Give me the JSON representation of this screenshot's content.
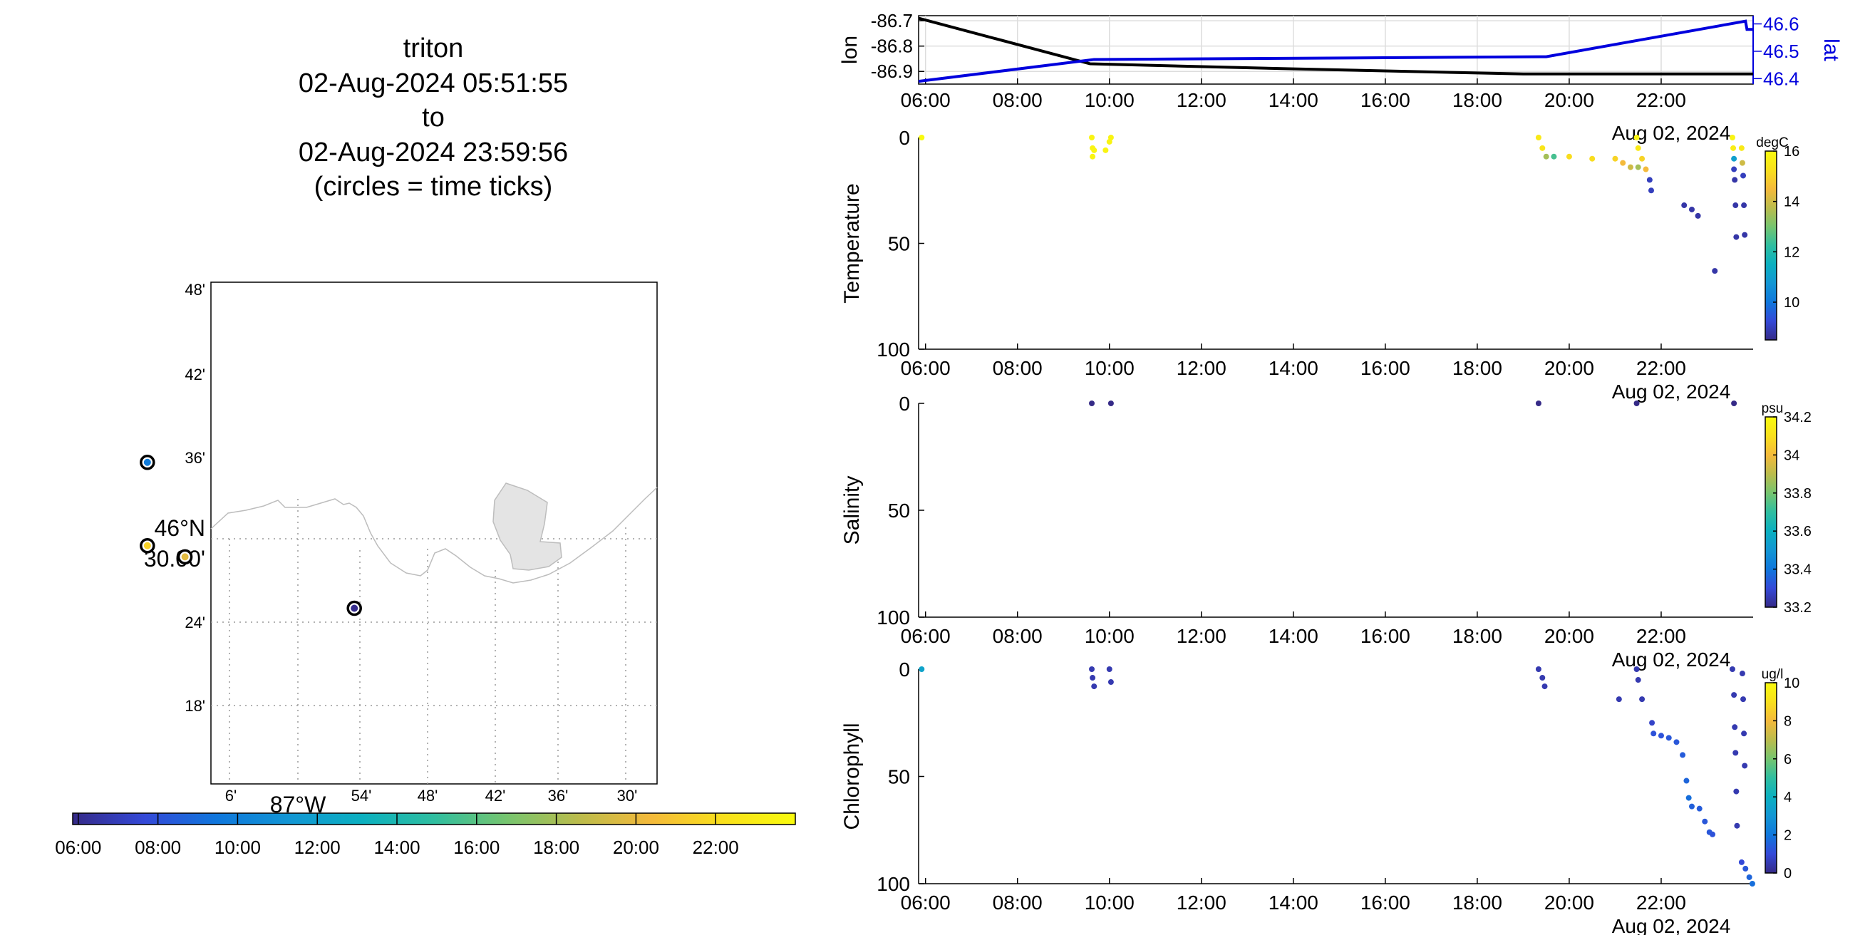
{
  "colors": {
    "lon_line": "#000000",
    "lat_line": "#0000dd",
    "parula": [
      "#352a87",
      "#3449d8",
      "#0f77dc",
      "#1296d4",
      "#0bb0c0",
      "#2fbea0",
      "#76c56f",
      "#bbbc4c",
      "#f4ba3b",
      "#f9e01c",
      "#f9fb0e"
    ]
  },
  "title": {
    "lines": [
      "triton",
      "02-Aug-2024 05:51:55",
      "to",
      "02-Aug-2024 23:59:56",
      "(circles = time ticks)"
    ]
  },
  "map": {
    "lat_ticks": [
      "48'",
      "42'",
      "36'",
      "30.00'",
      "24'",
      "18'"
    ],
    "lat_major": "46°N",
    "lon_ticks": [
      "6'",
      "54'",
      "48'",
      "42'",
      "36'",
      "30'"
    ],
    "lon_major": "87°W",
    "markers": [
      {
        "lon": -87.12,
        "lat": 46.555,
        "hour": 9.8
      },
      {
        "lon": -87.12,
        "lat": 46.495,
        "hour": 21.5
      },
      {
        "lon": -87.09,
        "lat": 46.487,
        "hour": 19.8
      },
      {
        "lon": -86.955,
        "lat": 46.45,
        "hour": 6.0
      }
    ]
  },
  "time_colorbar": {
    "ticks": [
      "06:00",
      "08:00",
      "10:00",
      "12:00",
      "14:00",
      "16:00",
      "18:00",
      "20:00",
      "22:00"
    ],
    "range_hours": [
      5.86,
      24.0
    ]
  },
  "chart_data": [
    {
      "type": "line",
      "title": "",
      "xlabel": "",
      "x_ticks": [
        "06:00",
        "08:00",
        "10:00",
        "12:00",
        "14:00",
        "16:00",
        "18:00",
        "20:00",
        "22:00"
      ],
      "x_date_label": "Aug 02, 2024",
      "xlim": [
        "05:51",
        "24:00"
      ],
      "left_axis": {
        "label": "lon",
        "ticks": [
          "-86.7",
          "-86.8",
          "-86.9"
        ],
        "ylim": [
          -86.95,
          -86.68
        ]
      },
      "right_axis": {
        "label": "lat",
        "ticks": [
          "46.6",
          "46.5",
          "46.4"
        ],
        "ylim": [
          46.38,
          46.63
        ]
      },
      "series": [
        {
          "name": "lon",
          "axis": "left",
          "x": [
            "05:51",
            "09:35",
            "14:00",
            "19:00",
            "22:00",
            "24:00"
          ],
          "y": [
            -86.69,
            -86.87,
            -86.89,
            -86.91,
            -86.91,
            -86.91
          ]
        },
        {
          "name": "lat",
          "axis": "right",
          "x": [
            "05:51",
            "09:40",
            "19:30",
            "21:30",
            "23:50",
            "23:52",
            "24:00"
          ],
          "y": [
            46.39,
            46.47,
            46.48,
            46.54,
            46.61,
            46.58,
            46.58
          ]
        }
      ]
    },
    {
      "type": "scatter",
      "ylabel": "Temperature",
      "y_ticks": [
        "0",
        "50",
        "100"
      ],
      "ylim": [
        0,
        100
      ],
      "x_ticks": [
        "06:00",
        "08:00",
        "10:00",
        "12:00",
        "14:00",
        "16:00",
        "18:00",
        "20:00",
        "22:00"
      ],
      "x_date_label": "Aug 02, 2024",
      "colorbar": {
        "unit": "degC",
        "ticks": [
          "16",
          "14",
          "12",
          "10"
        ],
        "range": [
          8.5,
          16
        ]
      },
      "points": [
        [
          "05:55",
          0,
          16
        ],
        [
          "09:37",
          0,
          15.8
        ],
        [
          "09:38",
          5,
          15.8
        ],
        [
          "09:38",
          9,
          15.8
        ],
        [
          "09:40",
          6,
          15.8
        ],
        [
          "09:55",
          6,
          15.8
        ],
        [
          "10:00",
          2,
          15.8
        ],
        [
          "10:02",
          0,
          15.8
        ],
        [
          "19:20",
          0,
          15.5
        ],
        [
          "19:25",
          5,
          15.4
        ],
        [
          "19:30",
          9,
          13.5
        ],
        [
          "19:40",
          9,
          12.5
        ],
        [
          "20:00",
          9,
          15.2
        ],
        [
          "20:30",
          10,
          15.2
        ],
        [
          "21:00",
          10,
          15.0
        ],
        [
          "21:10",
          12,
          14.5
        ],
        [
          "21:20",
          14,
          14.0
        ],
        [
          "21:30",
          14,
          13.5
        ],
        [
          "21:28",
          0,
          15.8
        ],
        [
          "21:30",
          5,
          15.5
        ],
        [
          "21:35",
          10,
          15.0
        ],
        [
          "21:40",
          15,
          14.5
        ],
        [
          "21:45",
          20,
          9.0
        ],
        [
          "21:47",
          25,
          9.0
        ],
        [
          "22:30",
          32,
          8.8
        ],
        [
          "22:40",
          34,
          8.8
        ],
        [
          "22:48",
          37,
          8.8
        ],
        [
          "23:10",
          63,
          8.8
        ],
        [
          "23:33",
          0,
          15.8
        ],
        [
          "23:34",
          5,
          15.6
        ],
        [
          "23:35",
          10,
          11.0
        ],
        [
          "23:35",
          15,
          9.0
        ],
        [
          "23:36",
          20,
          8.8
        ],
        [
          "23:37",
          32,
          8.8
        ],
        [
          "23:38",
          47,
          8.8
        ],
        [
          "23:45",
          5,
          15.5
        ],
        [
          "23:46",
          12,
          14.0
        ],
        [
          "23:47",
          18,
          9.0
        ],
        [
          "23:48",
          32,
          8.8
        ],
        [
          "23:49",
          46,
          8.8
        ]
      ]
    },
    {
      "type": "scatter",
      "ylabel": "Salinity",
      "y_ticks": [
        "0",
        "50",
        "100"
      ],
      "ylim": [
        0,
        100
      ],
      "x_ticks": [
        "06:00",
        "08:00",
        "10:00",
        "12:00",
        "14:00",
        "16:00",
        "18:00",
        "20:00",
        "22:00"
      ],
      "x_date_label": "Aug 02, 2024",
      "colorbar": {
        "unit": "psu",
        "ticks": [
          "34.2",
          "34",
          "33.8",
          "33.6",
          "33.4",
          "33.2"
        ],
        "range": [
          33.2,
          34.2
        ]
      },
      "points": [
        [
          "09:37",
          0,
          33.2
        ],
        [
          "10:02",
          0,
          33.2
        ],
        [
          "19:20",
          0,
          33.2
        ],
        [
          "21:28",
          0,
          33.2
        ],
        [
          "23:35",
          0,
          33.2
        ]
      ]
    },
    {
      "type": "scatter",
      "ylabel": "Chlorophyll",
      "y_ticks": [
        "0",
        "50",
        "100"
      ],
      "ylim": [
        0,
        100
      ],
      "x_ticks": [
        "06:00",
        "08:00",
        "10:00",
        "12:00",
        "14:00",
        "16:00",
        "18:00",
        "20:00",
        "22:00"
      ],
      "x_date_label": "Aug 02, 2024",
      "colorbar": {
        "unit": "ug/l",
        "ticks": [
          "10",
          "8",
          "6",
          "4",
          "2",
          "0"
        ],
        "range": [
          0,
          10
        ]
      },
      "points": [
        [
          "05:55",
          0,
          3.5
        ],
        [
          "09:37",
          0,
          0.5
        ],
        [
          "09:38",
          4,
          0.5
        ],
        [
          "09:40",
          8,
          0.5
        ],
        [
          "10:00",
          0,
          0.5
        ],
        [
          "10:02",
          6,
          0.5
        ],
        [
          "19:20",
          0,
          0.5
        ],
        [
          "19:25",
          4,
          0.5
        ],
        [
          "19:28",
          8,
          0.5
        ],
        [
          "21:05",
          14,
          0.5
        ],
        [
          "21:28",
          0,
          0.5
        ],
        [
          "21:30",
          5,
          0.5
        ],
        [
          "21:35",
          14,
          0.5
        ],
        [
          "21:48",
          25,
          0.8
        ],
        [
          "21:50",
          30,
          1.2
        ],
        [
          "22:00",
          31,
          1.2
        ],
        [
          "22:10",
          32,
          1.3
        ],
        [
          "22:20",
          34,
          1.3
        ],
        [
          "22:28",
          40,
          1.4
        ],
        [
          "22:33",
          52,
          1.6
        ],
        [
          "22:36",
          60,
          1.8
        ],
        [
          "22:40",
          64,
          1.5
        ],
        [
          "22:50",
          65,
          1.4
        ],
        [
          "22:57",
          71,
          1.3
        ],
        [
          "23:03",
          76,
          1.3
        ],
        [
          "23:07",
          77,
          1.2
        ],
        [
          "23:33",
          0,
          0.5
        ],
        [
          "23:35",
          12,
          0.5
        ],
        [
          "23:36",
          27,
          0.5
        ],
        [
          "23:37",
          39,
          0.5
        ],
        [
          "23:38",
          57,
          0.5
        ],
        [
          "23:39",
          73,
          0.5
        ],
        [
          "23:45",
          90,
          1.0
        ],
        [
          "23:50",
          93,
          1.3
        ],
        [
          "23:55",
          97,
          1.6
        ],
        [
          "23:59",
          100,
          1.8
        ],
        [
          "23:46",
          2,
          0.5
        ],
        [
          "23:47",
          14,
          0.5
        ],
        [
          "23:48",
          30,
          0.5
        ],
        [
          "23:49",
          45,
          0.5
        ]
      ]
    }
  ]
}
